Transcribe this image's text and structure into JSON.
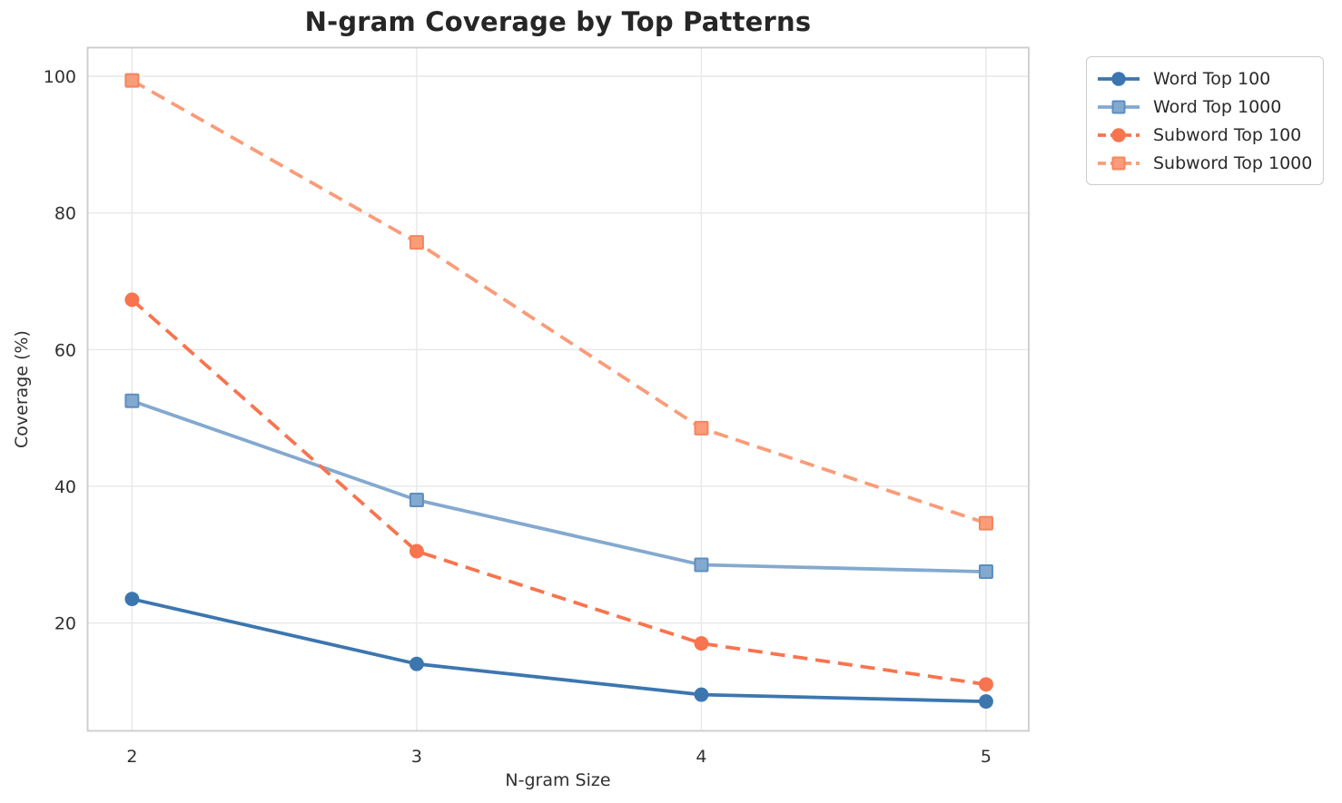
{
  "chart_data": {
    "type": "line",
    "title": "N-gram Coverage by Top Patterns",
    "xlabel": "N-gram Size",
    "ylabel": "Coverage (%)",
    "x": [
      2,
      3,
      4,
      5
    ],
    "xtick_labels": [
      "2",
      "3",
      "4",
      "5"
    ],
    "yticks": [
      20,
      40,
      60,
      80,
      100
    ],
    "xlim": [
      1.844,
      5.15
    ],
    "ylim": [
      4.2,
      104.2
    ],
    "grid": true,
    "legend_position": "outside-top-right",
    "background_color": "#ffffff",
    "grid_color": "#e8e8e8",
    "spine_color": "#cccccc",
    "series": [
      {
        "name": "Word Top 100",
        "color": "#3c76af",
        "marker_edge": "#3c76af",
        "marker": "circle",
        "line_style": "solid",
        "values": [
          23.5,
          14.0,
          9.5,
          8.5
        ]
      },
      {
        "name": "Word Top 1000",
        "color": "#84a9cf",
        "marker_edge": "#5b8fc0",
        "marker": "square",
        "line_style": "solid",
        "values": [
          52.5,
          38.0,
          28.5,
          27.5
        ]
      },
      {
        "name": "Subword Top 100",
        "color": "#f8744e",
        "marker_edge": "#f8744e",
        "marker": "circle",
        "line_style": "dashed",
        "values": [
          67.3,
          30.5,
          17.0,
          11.0
        ]
      },
      {
        "name": "Subword Top 1000",
        "color": "#f99c79",
        "marker_edge": "#f8845e",
        "marker": "square",
        "line_style": "dashed",
        "values": [
          99.4,
          75.7,
          48.5,
          34.6
        ]
      }
    ]
  }
}
